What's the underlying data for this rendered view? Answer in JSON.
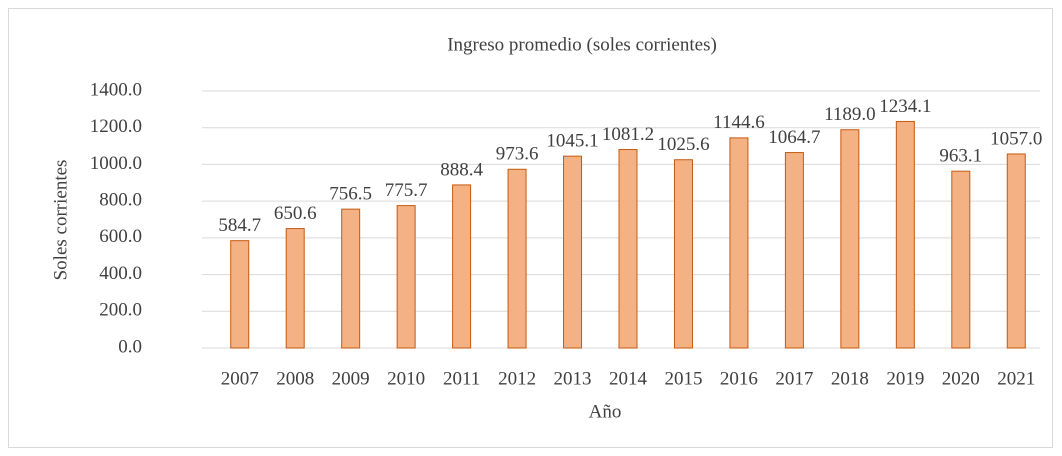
{
  "chart_data": {
    "type": "bar",
    "title": "Ingreso promedio (soles corrientes)",
    "x_label": "Año",
    "y_label": "Soles corrientes",
    "categories": [
      "2007",
      "2008",
      "2009",
      "2010",
      "2011",
      "2012",
      "2013",
      "2014",
      "2015",
      "2016",
      "2017",
      "2018",
      "2019",
      "2020",
      "2021"
    ],
    "values": [
      584.7,
      650.6,
      756.5,
      775.7,
      888.4,
      973.6,
      1045.1,
      1081.2,
      1025.6,
      1144.6,
      1064.7,
      1189.0,
      1234.1,
      963.1,
      1057.0
    ],
    "value_labels": [
      "584.7",
      "650.6",
      "756.5",
      "775.7",
      "888.4",
      "973.6",
      "1045.1",
      "1081.2",
      "1025.6",
      "1144.6",
      "1064.7",
      "1189.0",
      "1234.1",
      "963.1",
      "1057.0"
    ],
    "color": "#f4b183",
    "edge_color": "#c55a11",
    "ylim": [
      0,
      1400
    ],
    "yticks": [
      {
        "value": 0,
        "label": "0.0"
      },
      {
        "value": 200,
        "label": "200.0"
      },
      {
        "value": 400,
        "label": "400.0"
      },
      {
        "value": 600,
        "label": "600.0"
      },
      {
        "value": 800,
        "label": "800.0"
      },
      {
        "value": 1000,
        "label": "1000.0"
      },
      {
        "value": 1200,
        "label": "1200.0"
      },
      {
        "value": 1400,
        "label": "1400.0"
      }
    ],
    "grid": true
  }
}
